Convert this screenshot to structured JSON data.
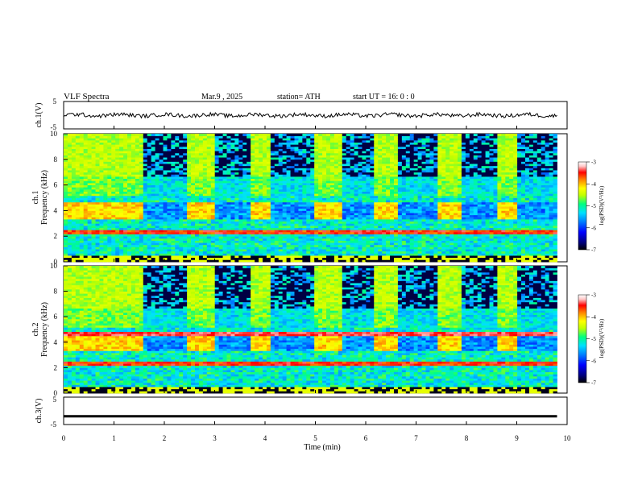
{
  "header": {
    "title": "VLF  Spectra",
    "date": "Mar.9  , 2025",
    "station": "station= ATH",
    "start": "start  UT  =    16: 0  : 0"
  },
  "chart_data": [
    {
      "id": "ch1-waveform",
      "type": "line",
      "ylabel": "ch.1(V)",
      "ylim": [
        -5,
        5
      ],
      "yticks": [
        "5",
        "-5"
      ],
      "xlim": [
        0,
        10
      ],
      "baseline": 0,
      "color": "#000000"
    },
    {
      "id": "ch1-spectrogram",
      "type": "heatmap",
      "ylabel": "ch.1\nFrequency  (kHz)",
      "ylim": [
        0,
        10
      ],
      "yticks": [
        "0",
        "2",
        "4",
        "6",
        "8",
        "10"
      ],
      "xlim": [
        0,
        10
      ],
      "data_end_min": 9.8,
      "colorbar": {
        "label": "log(PSD)(V²/Hz)",
        "range": [
          -7,
          -3
        ],
        "ticks": [
          "-3",
          "-4",
          "-5",
          "-6",
          "-7"
        ]
      }
    },
    {
      "id": "ch2-spectrogram",
      "type": "heatmap",
      "ylabel": "ch.2\nFrequency  (kHz)",
      "ylim": [
        0,
        10
      ],
      "yticks": [
        "0",
        "2",
        "4",
        "6",
        "8",
        "10"
      ],
      "xlim": [
        0,
        10
      ],
      "data_end_min": 9.8,
      "colorbar": {
        "label": "log(PSD)(V²/Hz)",
        "range": [
          -7,
          -3
        ],
        "ticks": [
          "-3",
          "-4",
          "-5",
          "-6",
          "-7"
        ]
      }
    },
    {
      "id": "ch3-waveform",
      "type": "line",
      "ylabel": "ch.3(V)",
      "ylim": [
        -5,
        5
      ],
      "yticks": [
        "5",
        "-5"
      ],
      "xlim": [
        0,
        10
      ],
      "baseline": -2,
      "color": "#000000"
    }
  ],
  "xaxis": {
    "label": "Time  (min)",
    "ticks": [
      "0",
      "1",
      "2",
      "3",
      "4",
      "5",
      "6",
      "7",
      "8",
      "9",
      "10"
    ]
  },
  "colors": {
    "colormap": [
      "#000000",
      "#00007a",
      "#0000ff",
      "#0080ff",
      "#00e0ff",
      "#00ff80",
      "#c0ff00",
      "#ffff00",
      "#ff8000",
      "#ff0000",
      "#ffc8c8",
      "#ffffff"
    ]
  }
}
